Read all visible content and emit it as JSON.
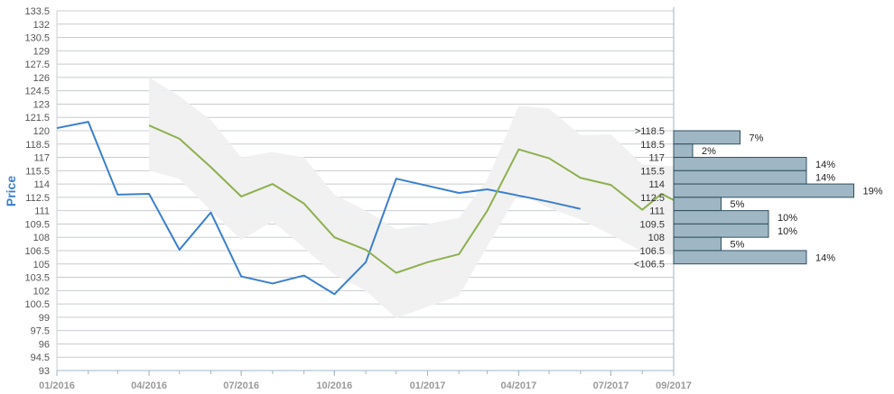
{
  "colors": {
    "actual": "#3a7fcc",
    "forecast": "#8db04e",
    "band": "#f0f0f0",
    "grid": "#c8ccd0",
    "hist_fill": "#9fb7c4",
    "hist_stroke": "#2f4f5f",
    "axis": "#9fb7c4",
    "ylabel": "#3a7fcc"
  },
  "chart_data": {
    "type": "line",
    "ylabel": "Price",
    "ylim": [
      93,
      133.5
    ],
    "ytick_step": 1.5,
    "yticks": [
      "93",
      "94.5",
      "96",
      "97.5",
      "99",
      "100.5",
      "102",
      "103.5",
      "105",
      "106.5",
      "108",
      "109.5",
      "111",
      "112.5",
      "114",
      "115.5",
      "117",
      "118.5",
      "120",
      "121.5",
      "123",
      "124.5",
      "126",
      "127.5",
      "129",
      "130.5",
      "132",
      "133.5"
    ],
    "x_range": [
      "2016-01-01",
      "2017-09-01"
    ],
    "x_ticks": [
      {
        "date": "2016-01-01",
        "label": "01/2016"
      },
      {
        "date": "2016-04-01",
        "label": "04/2016"
      },
      {
        "date": "2016-07-01",
        "label": "07/2016"
      },
      {
        "date": "2016-10-01",
        "label": "10/2016"
      },
      {
        "date": "2017-01-01",
        "label": "01/2017"
      },
      {
        "date": "2017-04-01",
        "label": "04/2017"
      },
      {
        "date": "2017-07-01",
        "label": "07/2017"
      },
      {
        "date": "2017-09-01",
        "label": "09/2017"
      }
    ],
    "series": [
      {
        "key": "actual",
        "points": [
          [
            "2016-01-01",
            120.3
          ],
          [
            "2016-02-01",
            121.0
          ],
          [
            "2016-03-01",
            112.8
          ],
          [
            "2016-04-01",
            112.9
          ],
          [
            "2016-05-01",
            106.6
          ],
          [
            "2016-06-01",
            110.8
          ],
          [
            "2016-07-01",
            103.6
          ],
          [
            "2016-08-01",
            102.8
          ],
          [
            "2016-09-01",
            103.7
          ],
          [
            "2016-10-01",
            101.6
          ],
          [
            "2016-11-01",
            105.2
          ],
          [
            "2016-12-01",
            114.6
          ],
          [
            "2017-01-01",
            113.8
          ],
          [
            "2017-02-01",
            113.0
          ],
          [
            "2017-03-01",
            113.4
          ],
          [
            "2017-04-01",
            112.7
          ],
          [
            "2017-05-01",
            112.0
          ],
          [
            "2017-06-01",
            111.2
          ]
        ]
      },
      {
        "key": "forecast",
        "points": [
          [
            "2016-04-01",
            120.6
          ],
          [
            "2016-05-01",
            119.1
          ],
          [
            "2016-06-01",
            115.9
          ],
          [
            "2016-07-01",
            112.6
          ],
          [
            "2016-08-01",
            114.0
          ],
          [
            "2016-09-01",
            111.8
          ],
          [
            "2016-10-01",
            108.0
          ],
          [
            "2016-11-01",
            106.6
          ],
          [
            "2016-12-01",
            104.0
          ],
          [
            "2017-01-01",
            105.2
          ],
          [
            "2017-02-01",
            106.1
          ],
          [
            "2017-03-01",
            111.0
          ],
          [
            "2017-04-01",
            117.9
          ],
          [
            "2017-05-01",
            116.9
          ],
          [
            "2017-06-01",
            114.7
          ],
          [
            "2017-07-01",
            113.9
          ],
          [
            "2017-08-01",
            111.1
          ],
          [
            "2017-08-20",
            112.9
          ],
          [
            "2017-09-01",
            112.2
          ]
        ]
      }
    ],
    "band": {
      "x": [
        "2016-04-01",
        "2016-05-01",
        "2016-06-01",
        "2016-07-01",
        "2016-08-01",
        "2016-09-01",
        "2016-10-01",
        "2016-11-01",
        "2016-12-01",
        "2017-01-01",
        "2017-02-01",
        "2017-03-01",
        "2017-04-01",
        "2017-05-01",
        "2017-06-01",
        "2017-07-01",
        "2017-08-01",
        "2017-09-01"
      ],
      "upper": [
        126.0,
        123.9,
        121.2,
        117.0,
        117.6,
        117.0,
        112.8,
        111.0,
        108.9,
        109.5,
        110.2,
        114.5,
        122.8,
        122.5,
        119.5,
        119.6,
        116.2,
        116.0
      ],
      "lower": [
        115.5,
        114.6,
        111.0,
        107.7,
        109.8,
        106.8,
        103.8,
        102.0,
        98.9,
        100.2,
        101.4,
        107.0,
        113.0,
        111.3,
        110.0,
        108.3,
        106.4,
        106.0
      ]
    },
    "histogram": [
      {
        "label": ">118.5",
        "pct": "7%",
        "value": 7
      },
      {
        "label": "118.5",
        "pct": "2%",
        "value": 2
      },
      {
        "label": "117",
        "pct": "14%",
        "value": 14
      },
      {
        "label": "115.5",
        "pct": "14%",
        "value": 14
      },
      {
        "label": "114",
        "pct": "19%",
        "value": 19
      },
      {
        "label": "112.5",
        "pct": "5%",
        "value": 5
      },
      {
        "label": "111",
        "pct": "10%",
        "value": 10
      },
      {
        "label": "109.5",
        "pct": "10%",
        "value": 10
      },
      {
        "label": "108",
        "pct": "5%",
        "value": 5
      },
      {
        "label": "106.5",
        "pct": "14%",
        "value": 14
      },
      {
        "label": "<106.5",
        "pct": "",
        "value": 0
      }
    ]
  }
}
